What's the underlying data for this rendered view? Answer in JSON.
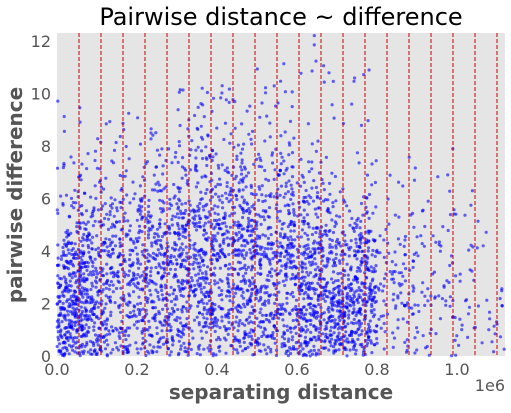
{
  "colors": {
    "background": "#ffffff",
    "plot_background": "#e5e5e5",
    "points": "#0000ff",
    "window_lines": "#cc0000",
    "text": "#555555",
    "title": "#000000"
  },
  "chart_data": {
    "type": "scatter",
    "title": "Pairwise distance ~ difference",
    "xlabel": "separating distance",
    "ylabel": "pairwise difference",
    "x_offset_label": "1e6",
    "xlim": [
      0,
      1120000
    ],
    "ylim": [
      0,
      12.3
    ],
    "x_ticks": [
      0,
      200000,
      400000,
      600000,
      800000,
      1000000
    ],
    "x_tick_labels": [
      "0.0",
      "0.2",
      "0.4",
      "0.6",
      "0.8",
      "1.0"
    ],
    "y_ticks": [
      0,
      2,
      4,
      6,
      8,
      10,
      12
    ],
    "y_tick_labels": [
      "0",
      "2",
      "4",
      "6",
      "8",
      "10",
      "12"
    ],
    "grid": false,
    "point_color": "#0000ff",
    "point_alpha": 0.6,
    "vertical_lines": {
      "style": "dashed",
      "color": "#cc0000",
      "x": [
        55000,
        110000,
        165000,
        220000,
        275000,
        330000,
        385000,
        440000,
        495000,
        550000,
        605000,
        660000,
        715000,
        770000,
        825000,
        880000,
        935000,
        990000,
        1045000,
        1100000
      ]
    },
    "density_profile": {
      "description_of_points": "approx. 4000 points; dense below y=6 for x<0.8e6, sparse beyond",
      "bins": [
        {
          "x_start": 0,
          "x_end": 100000,
          "count": 520,
          "y_center": 2.0,
          "y_spread": 2.2,
          "y_max": 10.0
        },
        {
          "x_start": 100000,
          "x_end": 200000,
          "count": 330,
          "y_center": 2.6,
          "y_spread": 2.3,
          "y_max": 9.5
        },
        {
          "x_start": 200000,
          "x_end": 300000,
          "count": 380,
          "y_center": 3.3,
          "y_spread": 2.4,
          "y_max": 9.8
        },
        {
          "x_start": 300000,
          "x_end": 400000,
          "count": 470,
          "y_center": 3.8,
          "y_spread": 2.5,
          "y_max": 10.2
        },
        {
          "x_start": 400000,
          "x_end": 500000,
          "count": 450,
          "y_center": 3.5,
          "y_spread": 2.6,
          "y_max": 10.5
        },
        {
          "x_start": 500000,
          "x_end": 600000,
          "count": 430,
          "y_center": 3.4,
          "y_spread": 2.4,
          "y_max": 11.3
        },
        {
          "x_start": 600000,
          "x_end": 700000,
          "count": 470,
          "y_center": 2.6,
          "y_spread": 2.1,
          "y_max": 12.2
        },
        {
          "x_start": 700000,
          "x_end": 800000,
          "count": 430,
          "y_center": 2.2,
          "y_spread": 1.8,
          "y_max": 11.0
        },
        {
          "x_start": 800000,
          "x_end": 900000,
          "count": 110,
          "y_center": 2.5,
          "y_spread": 2.0,
          "y_max": 8.0
        },
        {
          "x_start": 900000,
          "x_end": 1000000,
          "count": 70,
          "y_center": 2.6,
          "y_spread": 2.0,
          "y_max": 8.0
        },
        {
          "x_start": 1000000,
          "x_end": 1120000,
          "count": 45,
          "y_center": 2.4,
          "y_spread": 2.0,
          "y_max": 7.0
        }
      ]
    }
  }
}
